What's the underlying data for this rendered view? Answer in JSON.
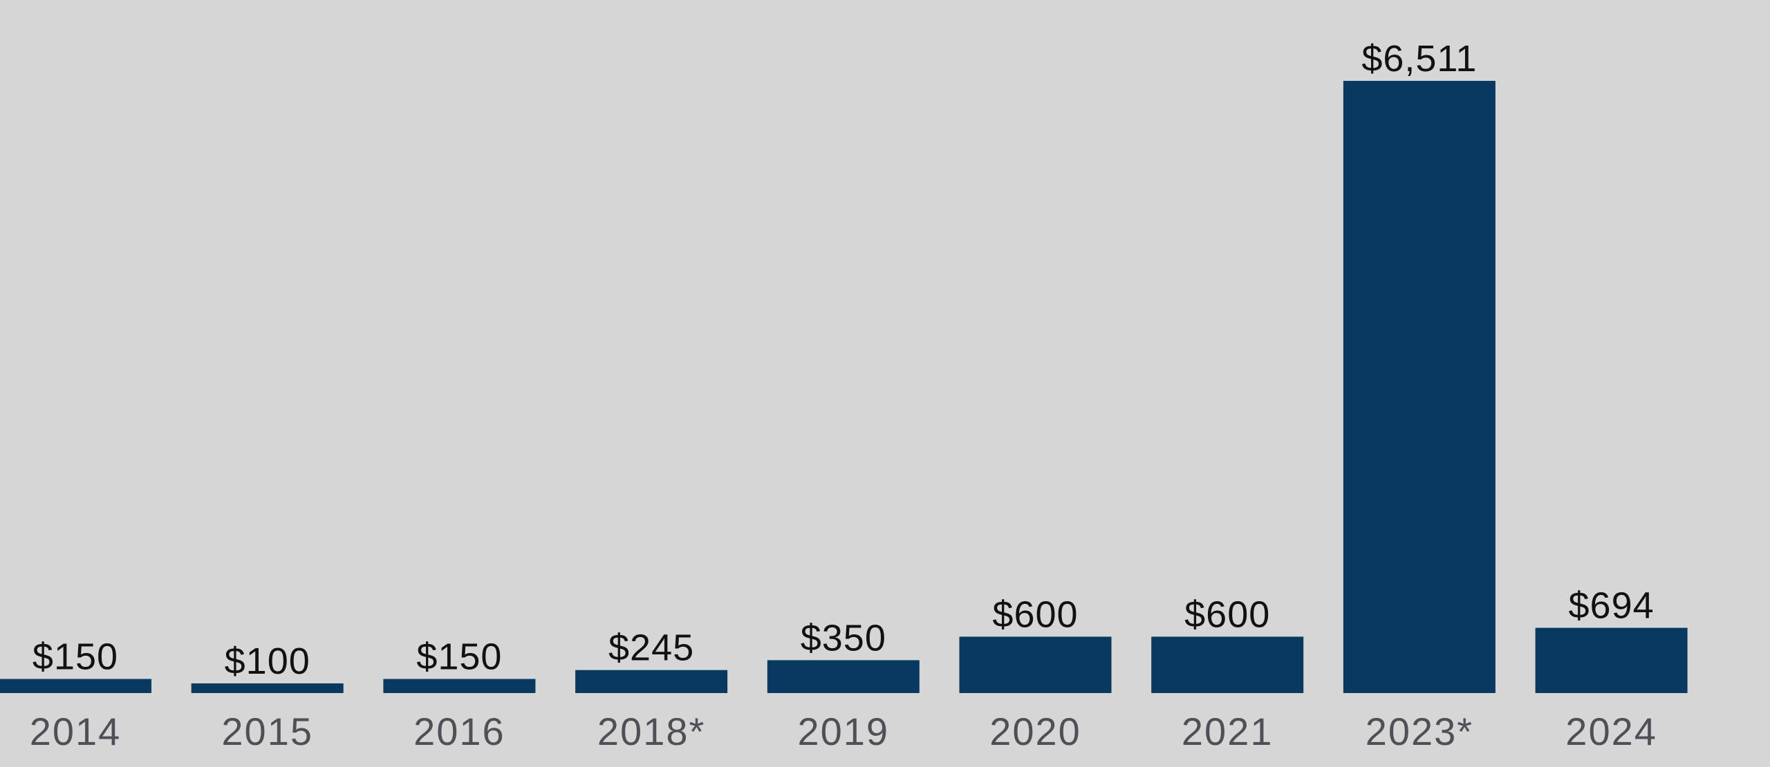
{
  "chart_data": {
    "type": "bar",
    "categories": [
      "2014",
      "2015",
      "2016",
      "2018*",
      "2019",
      "2020",
      "2021",
      "2023*",
      "2024"
    ],
    "values": [
      150,
      100,
      150,
      245,
      350,
      600,
      600,
      6511,
      694
    ],
    "value_labels": [
      "$150",
      "$100",
      "$150",
      "$245",
      "$350",
      "$600",
      "$600",
      "$6,511",
      "$694"
    ],
    "title": "",
    "xlabel": "",
    "ylabel": "",
    "ylim": [
      0,
      6511
    ],
    "grid": false,
    "legend": "none"
  },
  "colors": {
    "background": "#d6d6d6",
    "bar": "#073a5e",
    "value_label": "#111111",
    "category_label": "#4f4f57"
  }
}
